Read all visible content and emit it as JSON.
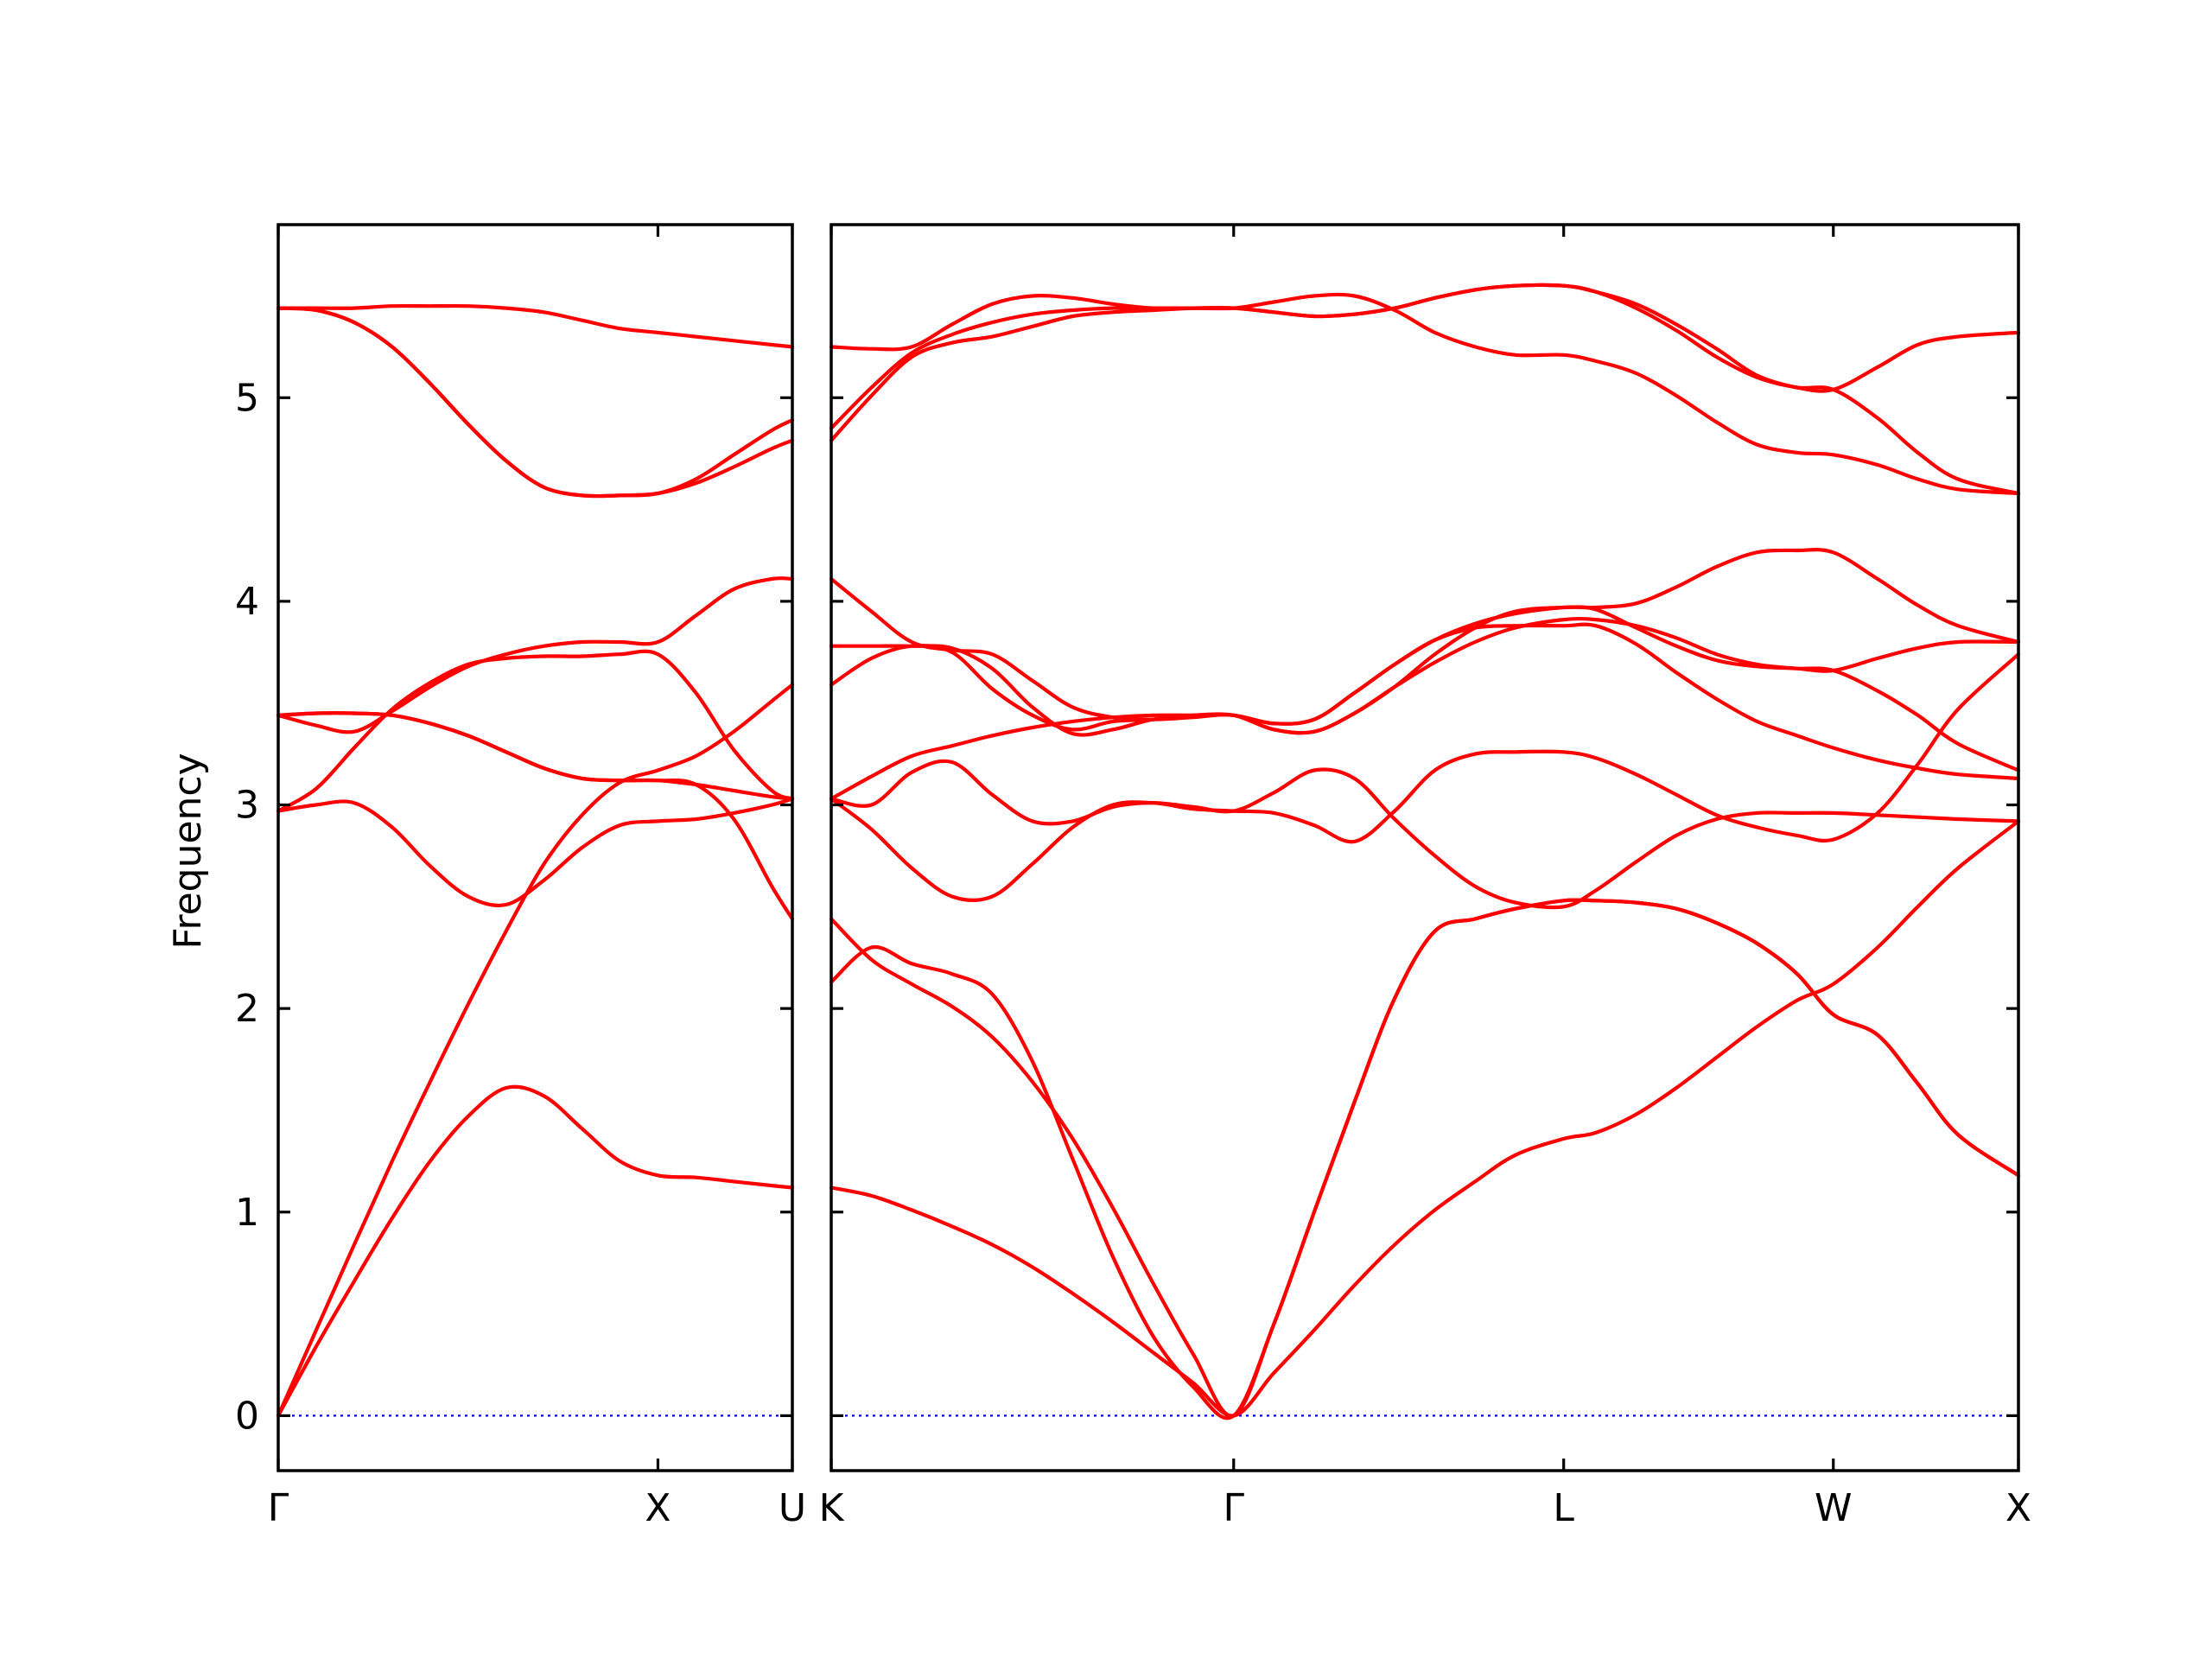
{
  "chart_data": {
    "type": "line",
    "ylabel": "Frequency",
    "xlabel": "",
    "ylim": [
      -0.27,
      5.85
    ],
    "yticks": [
      0,
      1,
      2,
      3,
      4,
      5
    ],
    "grid": false,
    "legend": "none",
    "colors": {
      "band": "#ff0000",
      "zero_line": "#0000cc",
      "axes": "#000000"
    },
    "panels": [
      {
        "name": "Gamma-X-U",
        "x_range": [
          0,
          1.354
        ],
        "ticks": [
          {
            "pos": 0.0,
            "label": "Γ"
          },
          {
            "pos": 1.0,
            "label": "X"
          },
          {
            "pos": 1.354,
            "label": "U"
          }
        ],
        "x": [
          0,
          0.1,
          0.2,
          0.3,
          0.4,
          0.5,
          0.6,
          0.7,
          0.8,
          0.9,
          1.0,
          1.1,
          1.2,
          1.3,
          1.354
        ],
        "series": [
          {
            "values": [
              0.0,
              0.34,
              0.66,
              0.97,
              1.25,
              1.47,
              1.61,
              1.57,
              1.41,
              1.25,
              1.18,
              1.17,
              1.15,
              1.13,
              1.12
            ]
          },
          {
            "values": [
              0.0,
              0.42,
              0.84,
              1.25,
              1.64,
              2.02,
              2.38,
              2.71,
              2.95,
              3.11,
              3.17,
              3.24,
              3.36,
              3.51,
              3.59
            ]
          },
          {
            "values": [
              2.97,
              3.0,
              3.01,
              2.89,
              2.7,
              2.55,
              2.51,
              2.63,
              2.79,
              2.9,
              2.92,
              2.93,
              2.96,
              3.0,
              3.03
            ]
          },
          {
            "values": [
              2.97,
              3.08,
              3.28,
              3.47,
              3.6,
              3.69,
              3.72,
              3.73,
              3.73,
              3.74,
              3.74,
              3.55,
              3.27,
              3.07,
              3.03
            ]
          },
          {
            "values": [
              3.44,
              3.39,
              3.36,
              3.46,
              3.58,
              3.68,
              3.74,
              3.78,
              3.8,
              3.8,
              3.8,
              3.93,
              4.06,
              4.11,
              4.11
            ]
          },
          {
            "values": [
              3.44,
              3.45,
              3.45,
              3.44,
              3.4,
              3.34,
              3.26,
              3.18,
              3.13,
              3.12,
              3.12,
              3.1,
              2.93,
              2.6,
              2.44
            ]
          },
          {
            "values": [
              3.44,
              3.45,
              3.45,
              3.44,
              3.4,
              3.34,
              3.26,
              3.18,
              3.13,
              3.12,
              3.12,
              3.1,
              3.07,
              3.04,
              3.03
            ]
          },
          {
            "values": [
              5.44,
              5.43,
              5.37,
              5.25,
              5.07,
              4.87,
              4.69,
              4.56,
              4.52,
              4.52,
              4.53,
              4.58,
              4.66,
              4.75,
              4.79
            ]
          },
          {
            "values": [
              5.44,
              5.44,
              5.44,
              5.45,
              5.45,
              5.45,
              5.44,
              5.42,
              5.38,
              5.34,
              5.32,
              5.3,
              5.28,
              5.26,
              5.25
            ]
          },
          {
            "values": [
              5.44,
              5.43,
              5.37,
              5.25,
              5.07,
              4.87,
              4.69,
              4.56,
              4.52,
              4.52,
              4.53,
              4.6,
              4.72,
              4.84,
              4.89
            ]
          }
        ]
      },
      {
        "name": "K-Gamma-L-W-X",
        "x_range": [
          0,
          2.95
        ],
        "ticks": [
          {
            "pos": 0.0,
            "label": "K"
          },
          {
            "pos": 1.0,
            "label": "Γ"
          },
          {
            "pos": 1.82,
            "label": "L"
          },
          {
            "pos": 2.49,
            "label": "W"
          },
          {
            "pos": 2.95,
            "label": "X"
          }
        ],
        "x": [
          0,
          0.1,
          0.2,
          0.3,
          0.4,
          0.5,
          0.6,
          0.7,
          0.8,
          0.9,
          1.0,
          1.1,
          1.2,
          1.3,
          1.4,
          1.5,
          1.6,
          1.7,
          1.82,
          1.9,
          2.0,
          2.1,
          2.2,
          2.3,
          2.4,
          2.49,
          2.6,
          2.7,
          2.8,
          2.95
        ],
        "series": [
          {
            "values": [
              1.12,
              1.08,
              1.01,
              0.93,
              0.84,
              0.73,
              0.6,
              0.46,
              0.31,
              0.16,
              0.0,
              0.21,
              0.42,
              0.64,
              0.84,
              1.01,
              1.15,
              1.28,
              1.36,
              1.39,
              1.48,
              1.61,
              1.76,
              1.91,
              2.04,
              2.12,
              2.3,
              2.5,
              2.69,
              2.92
            ]
          },
          {
            "values": [
              2.13,
              2.3,
              2.22,
              2.17,
              2.07,
              1.74,
              1.26,
              0.78,
              0.39,
              0.14,
              0.0,
              0.45,
              1.0,
              1.54,
              2.05,
              2.38,
              2.44,
              2.49,
              2.53,
              2.53,
              2.52,
              2.49,
              2.42,
              2.32,
              2.17,
              1.97,
              1.87,
              1.63,
              1.38,
              1.18
            ]
          },
          {
            "values": [
              2.44,
              2.24,
              2.12,
              2.01,
              1.86,
              1.64,
              1.36,
              1.02,
              0.65,
              0.3,
              0.0,
              0.45,
              1.0,
              1.54,
              2.05,
              2.38,
              2.44,
              2.49,
              2.53,
              2.53,
              2.52,
              2.49,
              2.42,
              2.32,
              2.17,
              1.97,
              1.87,
              1.63,
              1.38,
              1.18
            ]
          },
          {
            "values": [
              3.03,
              2.88,
              2.69,
              2.55,
              2.55,
              2.71,
              2.89,
              3.0,
              3.01,
              2.98,
              2.97,
              2.96,
              2.9,
              2.82,
              2.97,
              3.17,
              3.25,
              3.26,
              3.26,
              3.23,
              3.15,
              3.05,
              2.95,
              2.89,
              2.85,
              2.83,
              2.96,
              3.2,
              3.47,
              3.74
            ]
          },
          {
            "values": [
              3.03,
              3.0,
              3.16,
              3.21,
              3.05,
              2.92,
              2.92,
              2.99,
              3.01,
              2.99,
              2.97,
              3.06,
              3.17,
              3.13,
              2.93,
              2.75,
              2.6,
              2.52,
              2.5,
              2.58,
              2.72,
              2.85,
              2.93,
              2.96,
              2.96,
              2.96,
              2.95,
              2.94,
              2.93,
              2.92
            ]
          },
          {
            "values": [
              3.59,
              3.72,
              3.78,
              3.75,
              3.57,
              3.44,
              3.37,
              3.41,
              3.42,
              3.44,
              3.44,
              3.37,
              3.36,
              3.45,
              3.58,
              3.74,
              3.87,
              3.95,
              3.97,
              3.96,
              3.87,
              3.78,
              3.71,
              3.68,
              3.67,
              3.66,
              3.56,
              3.44,
              3.3,
              3.17
            ]
          },
          {
            "values": [
              3.78,
              3.78,
              3.78,
              3.77,
              3.67,
              3.48,
              3.35,
              3.37,
              3.42,
              3.44,
              3.44,
              3.4,
              3.42,
              3.55,
              3.69,
              3.81,
              3.89,
              3.94,
              3.97,
              3.97,
              3.99,
              4.07,
              4.17,
              4.24,
              4.25,
              4.24,
              4.11,
              3.98,
              3.88,
              3.8
            ]
          },
          {
            "values": [
              4.11,
              3.95,
              3.8,
              3.76,
              3.74,
              3.61,
              3.48,
              3.43,
              3.42,
              3.43,
              3.44,
              3.37,
              3.36,
              3.45,
              3.58,
              3.7,
              3.8,
              3.87,
              3.91,
              3.91,
              3.88,
              3.82,
              3.74,
              3.69,
              3.67,
              3.66,
              3.72,
              3.77,
              3.8,
              3.8
            ]
          },
          {
            "values": [
              3.03,
              3.14,
              3.24,
              3.29,
              3.34,
              3.38,
              3.41,
              3.43,
              3.44,
              3.44,
              3.44,
              3.4,
              3.42,
              3.55,
              3.69,
              3.81,
              3.87,
              3.88,
              3.88,
              3.88,
              3.79,
              3.65,
              3.52,
              3.41,
              3.34,
              3.28,
              3.22,
              3.18,
              3.15,
              3.13
            ]
          },
          {
            "values": [
              4.79,
              5.01,
              5.2,
              5.27,
              5.3,
              5.35,
              5.4,
              5.42,
              5.43,
              5.44,
              5.44,
              5.42,
              5.4,
              5.41,
              5.44,
              5.49,
              5.53,
              5.55,
              5.55,
              5.52,
              5.44,
              5.33,
              5.2,
              5.1,
              5.05,
              5.04,
              4.9,
              4.73,
              4.6,
              4.53
            ]
          },
          {
            "values": [
              4.85,
              5.05,
              5.22,
              5.31,
              5.37,
              5.41,
              5.43,
              5.44,
              5.44,
              5.44,
              5.44,
              5.47,
              5.5,
              5.5,
              5.43,
              5.32,
              5.25,
              5.21,
              5.21,
              5.18,
              5.12,
              5.01,
              4.88,
              4.77,
              4.73,
              4.72,
              4.67,
              4.6,
              4.55,
              4.53
            ]
          },
          {
            "values": [
              5.25,
              5.24,
              5.25,
              5.36,
              5.46,
              5.5,
              5.49,
              5.46,
              5.44,
              5.44,
              5.44,
              5.42,
              5.4,
              5.41,
              5.44,
              5.49,
              5.53,
              5.55,
              5.55,
              5.52,
              5.46,
              5.36,
              5.24,
              5.11,
              5.05,
              5.04,
              5.15,
              5.26,
              5.3,
              5.32
            ]
          }
        ]
      }
    ]
  }
}
